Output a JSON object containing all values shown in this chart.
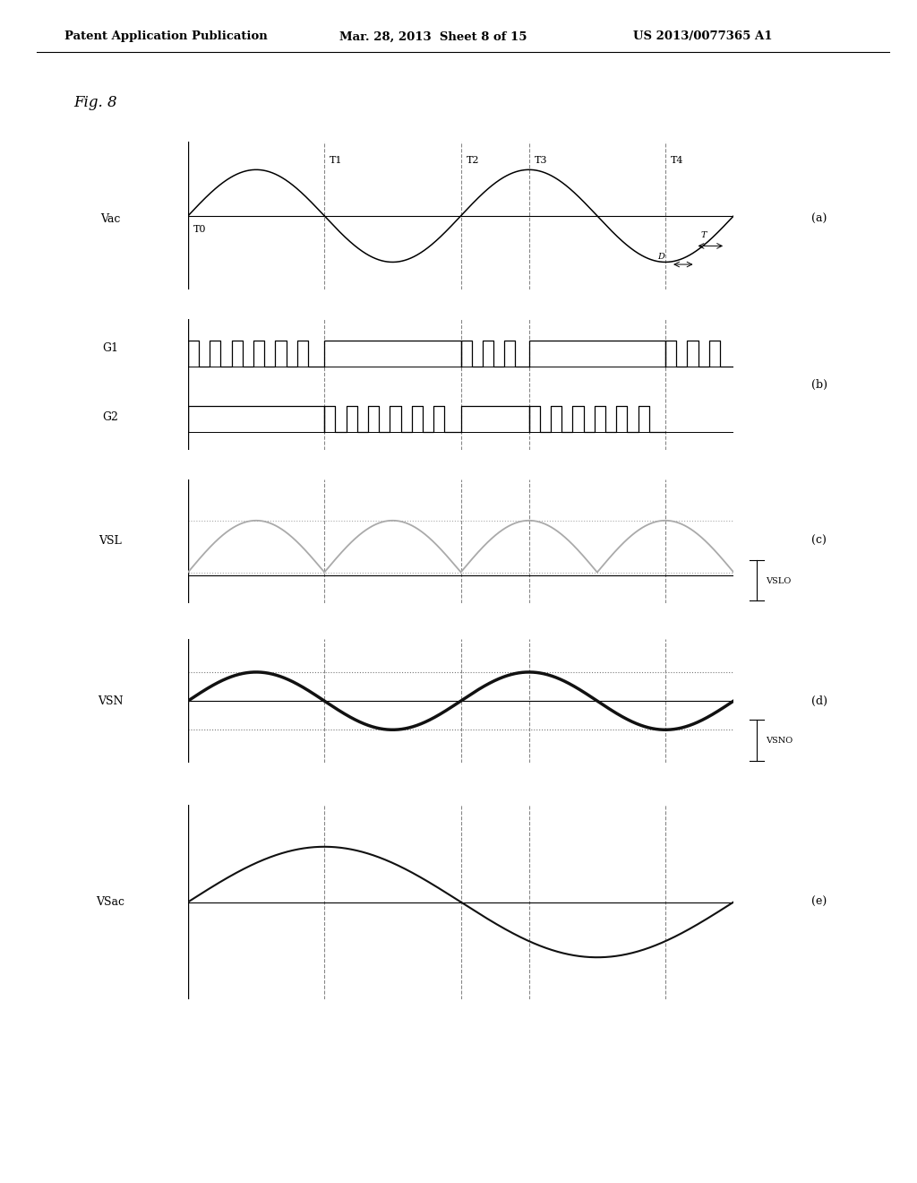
{
  "title_left": "Patent Application Publication",
  "title_mid": "Mar. 28, 2013  Sheet 8 of 15",
  "title_right": "US 2013/0077365 A1",
  "fig_label": "Fig. 8",
  "bg_color": "#ffffff",
  "header_fontsize": 9.5,
  "fig_label_fontsize": 12,
  "signal_fontsize": 9,
  "panel_letter_fontsize": 9,
  "annotation_fontsize": 8
}
